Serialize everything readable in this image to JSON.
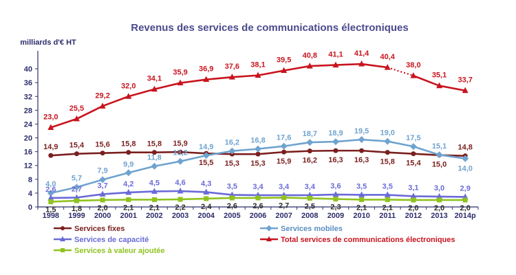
{
  "chart_data": {
    "type": "line",
    "title": "Revenus des services de communications électroniques",
    "ylabel": "milliards d'€ HT",
    "ylim": [
      0,
      44
    ],
    "yticks": [
      0,
      4,
      8,
      12,
      16,
      20,
      24,
      28,
      32,
      36,
      40
    ],
    "grid": false,
    "legend_position": "bottom",
    "categories": [
      "1998",
      "1999",
      "2000",
      "2001",
      "2002",
      "2003",
      "2004",
      "2005",
      "2006",
      "2007",
      "2008",
      "2009",
      "2010",
      "2011",
      "2012",
      "2013",
      "2014p"
    ],
    "series": [
      {
        "name": "Services fixes",
        "color": "#7b1f1f",
        "marker": "circle",
        "values": [
          14.9,
          15.4,
          15.6,
          15.8,
          15.8,
          15.9,
          15.5,
          15.3,
          15.3,
          15.9,
          16.2,
          16.3,
          16.3,
          15.8,
          15.4,
          15.0,
          14.8
        ],
        "labels": [
          "14,9",
          "15,4",
          "15,6",
          "15,8",
          "15,8",
          "15,9",
          "15,5",
          "15,3",
          "15,3",
          "15,9",
          "16,2",
          "16,3",
          "16,3",
          "15,8",
          "15,4",
          "15,0",
          "14,8"
        ]
      },
      {
        "name": "Services mobiles",
        "color": "#6fa3cf",
        "marker": "diamond",
        "values": [
          4.0,
          5.7,
          7.9,
          9.9,
          11.8,
          13.2,
          14.9,
          16.2,
          16.8,
          17.6,
          18.7,
          18.9,
          19.5,
          19.0,
          17.5,
          15.1,
          14.0
        ],
        "labels": [
          "4,0",
          "5,7",
          "7,9",
          "9,9",
          "11,8",
          "13,2",
          "14,9",
          "16,2",
          "16,8",
          "17,6",
          "18,7",
          "18,9",
          "19,5",
          "19,0",
          "17,5",
          "15,1",
          "14,0"
        ]
      },
      {
        "name": "Services de capacité",
        "color": "#6a6ad8",
        "marker": "triangle",
        "values": [
          2.6,
          2.7,
          3.7,
          4.2,
          4.5,
          4.6,
          4.3,
          3.5,
          3.4,
          3.4,
          3.4,
          3.6,
          3.5,
          3.5,
          3.1,
          3.0,
          2.9
        ],
        "labels": [
          "2,6",
          "2,7",
          "3,7",
          "4,2",
          "4,5",
          "4,6",
          "4,3",
          "3,5",
          "3,4",
          "3,4",
          "3,4",
          "3,6",
          "3,5",
          "3,5",
          "3,1",
          "3,0",
          "2,9"
        ]
      },
      {
        "name": "Total services de communications électroniques",
        "color": "#c8141e",
        "marker": "triangle",
        "values": [
          23.0,
          25.5,
          29.2,
          32.0,
          34.1,
          35.9,
          36.9,
          37.6,
          38.1,
          39.5,
          40.8,
          41.1,
          41.4,
          40.4,
          38.0,
          35.1,
          33.7
        ],
        "labels": [
          "23,0",
          "25,5",
          "29,2",
          "32,0",
          "34,1",
          "35,9",
          "36,9",
          "37,6",
          "38,1",
          "39,5",
          "40,8",
          "41,1",
          "41,4",
          "40,4",
          "38,0",
          "35,1",
          "33,7"
        ],
        "dotted_segment_after_index": 13
      },
      {
        "name": "Services à valeur ajoutée",
        "color": "#8fc31f",
        "marker": "square",
        "values": [
          1.5,
          1.8,
          2.0,
          2.1,
          2.1,
          2.2,
          2.4,
          2.6,
          2.6,
          2.7,
          2.5,
          2.3,
          2.1,
          2.1,
          2.0,
          2.0,
          2.0
        ],
        "labels": [
          "1,5",
          "1,8",
          "2,0",
          "2,1",
          "2,1",
          "2,2",
          "2,4",
          "2,6",
          "2,6",
          "2,7",
          "2,5",
          "2,3",
          "2,1",
          "2,1",
          "2,0",
          "2,0",
          "2,0"
        ]
      }
    ],
    "label_colors": {
      "Services fixes": "#7b1f1f",
      "Services mobiles": "#6fa3cf",
      "Services de capacité": "#6a6ad8",
      "Total services de communications électroniques": "#c8141e",
      "Services à valeur ajoutée": "#2c2c2c"
    },
    "axis_color": "#2c2c6c"
  }
}
